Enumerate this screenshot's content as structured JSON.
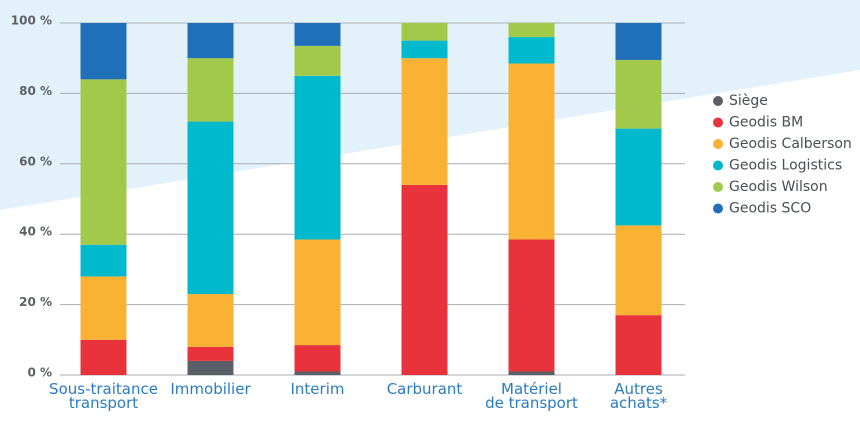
{
  "chart_data": {
    "type": "stacked-bar",
    "categories": [
      "Sous-traitance\ntransport",
      "Immobilier",
      "Interim",
      "Carburant",
      "Matériel\nde transport",
      "Autres\nachats*"
    ],
    "series": [
      {
        "name": "Siège",
        "color": "#5b6068",
        "values": [
          0,
          4,
          1,
          0,
          1,
          0
        ]
      },
      {
        "name": "Geodis BM",
        "color": "#e8333c",
        "values": [
          10,
          4,
          7.5,
          54,
          37.5,
          17
        ]
      },
      {
        "name": "Geodis Calberson",
        "color": "#f9b234",
        "values": [
          18,
          15,
          30,
          36,
          50,
          25.5
        ]
      },
      {
        "name": "Geodis Logistics",
        "color": "#00b9cd",
        "values": [
          9,
          49,
          46.5,
          5,
          7.5,
          27.5
        ]
      },
      {
        "name": "Geodis Wilson",
        "color": "#a3c94b",
        "values": [
          47,
          18,
          8.5,
          5,
          4,
          19.5
        ]
      },
      {
        "name": "Geodis SCO",
        "color": "#1f6fb9",
        "values": [
          16,
          10,
          6.5,
          0,
          0,
          10.5
        ]
      }
    ],
    "ylim": [
      0,
      100
    ],
    "yticks": [
      {
        "value": 0,
        "label": "0 %"
      },
      {
        "value": 20,
        "label": "20 %"
      },
      {
        "value": 40,
        "label": "40 %"
      },
      {
        "value": 60,
        "label": "60 %"
      },
      {
        "value": 80,
        "label": "80 %"
      },
      {
        "value": 100,
        "label": "100 %"
      }
    ],
    "grid": true,
    "legend": "right"
  }
}
